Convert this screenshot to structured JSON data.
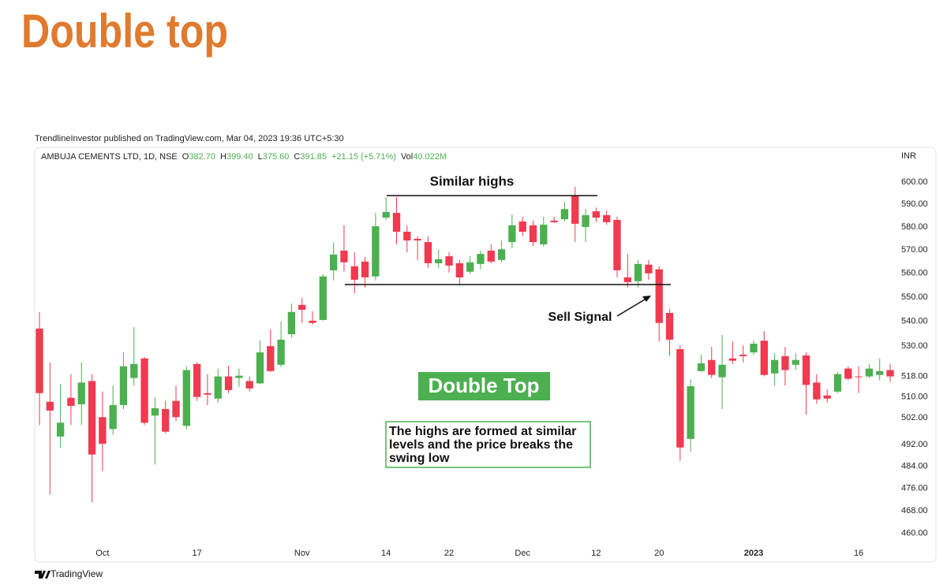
{
  "title": "Double top",
  "publisher": "TrendlineInvestor published on TradingView.com, Mar 04, 2023 19:36 UTC+5:30",
  "footer": "TradingView",
  "chart_data": {
    "type": "candlestick",
    "symbol": "AMBUJA CEMENTS LTD, 1D, NSE",
    "ohlc_legend": [
      {
        "label": "O",
        "value": "382.70"
      },
      {
        "label": "H",
        "value": "399.40"
      },
      {
        "label": "L",
        "value": "375.60"
      },
      {
        "label": "C",
        "value": "391.85"
      },
      {
        "label": "",
        "value": "+21.15 (+5.71%)"
      },
      {
        "label": "Vol",
        "value": "40.022M"
      }
    ],
    "currency": "INR",
    "up_color": "#4caf50",
    "down_color": "#ef3a4f",
    "log_scale": true,
    "grid": false,
    "categories": [
      null,
      null,
      null,
      null,
      null,
      null,
      "Oct",
      null,
      null,
      null,
      null,
      null,
      null,
      null,
      null,
      "17",
      null,
      null,
      null,
      null,
      null,
      null,
      null,
      null,
      null,
      "Nov",
      null,
      null,
      null,
      null,
      null,
      null,
      null,
      "14",
      null,
      null,
      null,
      null,
      null,
      "22",
      null,
      null,
      null,
      null,
      null,
      null,
      "Dec",
      null,
      null,
      null,
      null,
      null,
      null,
      "12",
      null,
      null,
      null,
      null,
      null,
      "20",
      null,
      null,
      null,
      null,
      null,
      null,
      null,
      null,
      "2023",
      null,
      null,
      null,
      null,
      null,
      null,
      null,
      null,
      null,
      "16",
      null,
      null,
      null
    ],
    "open": [
      537.1,
      508.2,
      495.0,
      509.7,
      507.2,
      516.2,
      502.3,
      497.8,
      506.9,
      517.4,
      525.1,
      502.9,
      505.4,
      508.5,
      499.0,
      522.9,
      511.5,
      509.4,
      518.0,
      517.4,
      516.2,
      515.3,
      530.0,
      522.6,
      534.8,
      546.8,
      540.3,
      540.6,
      561.3,
      569.7,
      563.0,
      565.0,
      558.7,
      584.1,
      586.2,
      577.9,
      574.8,
      573.4,
      564.3,
      567.3,
      564.3,
      560.7,
      564.0,
      569.7,
      565.7,
      573.4,
      582.4,
      580.7,
      572.4,
      582.8,
      583.4,
      593.9,
      580.0,
      586.9,
      585.2,
      583.1,
      558.3,
      556.7,
      563.7,
      561.7,
      543.5,
      528.8,
      494.1,
      520.1,
      524.5,
      517.7,
      525.1,
      526.6,
      527.5,
      532.2,
      519.2,
      526.0,
      522.6,
      526.3,
      515.6,
      510.6,
      512.1,
      521.1,
      518.0,
      518.0,
      518.6,
      520.5
    ],
    "high": [
      543.9,
      523.5,
      515.0,
      518.9,
      523.5,
      518.9,
      512.1,
      514.4,
      527.5,
      537.7,
      525.7,
      510.0,
      508.5,
      514.4,
      522.0,
      523.5,
      518.9,
      521.1,
      522.3,
      521.1,
      518.0,
      532.2,
      536.8,
      540.0,
      547.4,
      549.7,
      544.2,
      559.7,
      573.1,
      580.7,
      569.0,
      567.0,
      586.2,
      593.2,
      593.2,
      580.7,
      575.9,
      575.9,
      570.3,
      569.0,
      565.7,
      567.3,
      569.7,
      572.4,
      574.1,
      585.5,
      584.5,
      582.8,
      584.5,
      584.5,
      591.1,
      597.9,
      587.9,
      588.6,
      587.2,
      584.5,
      568.3,
      565.7,
      565.7,
      563.0,
      545.2,
      530.3,
      516.8,
      526.6,
      529.7,
      534.5,
      531.9,
      530.3,
      532.2,
      536.1,
      527.2,
      529.7,
      527.2,
      527.5,
      518.9,
      513.0,
      519.8,
      522.0,
      522.0,
      522.9,
      525.1,
      522.9
    ],
    "low": [
      499.3,
      473.8,
      490.9,
      499.3,
      499.3,
      471.0,
      482.3,
      495.6,
      505.4,
      514.4,
      499.3,
      484.6,
      496.2,
      500.8,
      497.8,
      508.5,
      506.9,
      507.8,
      511.5,
      513.9,
      512.1,
      515.0,
      519.8,
      521.7,
      533.5,
      539.4,
      538.7,
      540.3,
      557.0,
      560.7,
      551.7,
      554.0,
      557.0,
      583.1,
      572.4,
      569.0,
      565.7,
      562.3,
      562.3,
      560.3,
      555.0,
      559.7,
      561.7,
      564.3,
      564.7,
      570.7,
      575.9,
      571.7,
      571.4,
      581.7,
      582.4,
      573.4,
      573.4,
      582.1,
      581.0,
      558.3,
      554.0,
      554.0,
      557.3,
      531.9,
      526.3,
      486.0,
      489.4,
      519.8,
      517.4,
      505.4,
      522.9,
      523.5,
      526.6,
      518.0,
      514.4,
      514.4,
      520.5,
      503.2,
      507.5,
      507.8,
      511.5,
      516.5,
      511.5,
      517.4,
      516.5,
      515.9
    ],
    "close": [
      511.5,
      504.8,
      500.2,
      506.6,
      515.6,
      488.3,
      492.3,
      506.9,
      522.0,
      522.9,
      500.2,
      505.7,
      496.8,
      502.3,
      520.5,
      510.0,
      510.9,
      518.0,
      512.7,
      518.3,
      513.3,
      527.5,
      520.1,
      532.6,
      543.9,
      544.8,
      539.4,
      558.7,
      568.0,
      564.7,
      557.3,
      558.3,
      580.3,
      586.6,
      577.9,
      574.1,
      574.1,
      564.3,
      566.0,
      563.3,
      558.3,
      564.7,
      568.3,
      565.0,
      570.3,
      580.7,
      577.9,
      573.4,
      581.0,
      582.1,
      587.9,
      581.4,
      585.2,
      584.1,
      582.1,
      561.3,
      556.3,
      564.0,
      560.0,
      539.4,
      532.6,
      490.9,
      514.2,
      523.2,
      518.6,
      522.6,
      524.2,
      526.0,
      531.0,
      518.6,
      524.5,
      520.5,
      524.5,
      514.7,
      509.1,
      509.4,
      518.9,
      517.1,
      517.7,
      521.1,
      520.1,
      518.0
    ],
    "ylim": [
      456.4,
      615.6
    ],
    "yticks": [
      {
        "value": 600,
        "label": "600.00"
      },
      {
        "value": 590,
        "label": "590.00"
      },
      {
        "value": 580,
        "label": "580.00"
      },
      {
        "value": 570,
        "label": "570.00"
      },
      {
        "value": 560,
        "label": "560.00"
      },
      {
        "value": 550,
        "label": "550.00"
      },
      {
        "value": 540,
        "label": "540.00"
      },
      {
        "value": 530,
        "label": "530.00"
      },
      {
        "value": 518,
        "label": "518.00"
      },
      {
        "value": 510,
        "label": "510.00"
      },
      {
        "value": 502,
        "label": "502.00"
      },
      {
        "value": 492,
        "label": "492.00"
      },
      {
        "value": 484,
        "label": "484.00"
      },
      {
        "value": 476,
        "label": "476.00"
      },
      {
        "value": 468,
        "label": "468.00"
      },
      {
        "value": 460,
        "label": "460.00"
      }
    ],
    "levels": [
      593.9,
      555.3
    ],
    "annotations": {
      "similar_highs": "Similar highs",
      "sell_signal": "Sell Signal",
      "pattern": "Double Top",
      "note": [
        "The highs are formed at similar",
        "levels and the price breaks the",
        "swing low"
      ]
    }
  }
}
